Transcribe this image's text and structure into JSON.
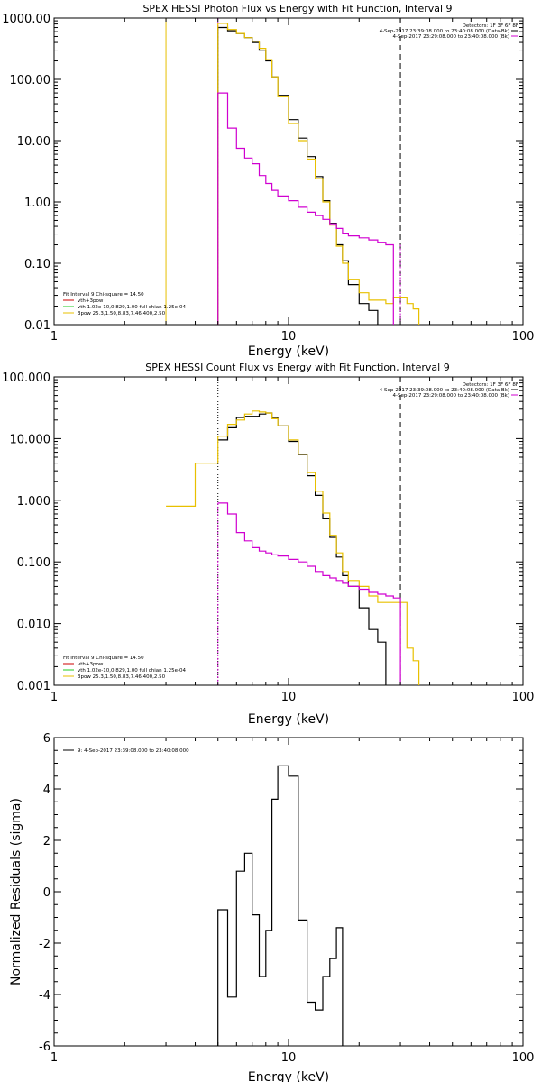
{
  "colors": {
    "black": "#000000",
    "yellow": "#e8c000",
    "magenta": "#d000d0",
    "red": "#cc0000",
    "green": "#22cc22"
  },
  "chart_data": [
    {
      "type": "line",
      "title": "SPEX HESSI Photon Flux vs Energy with Fit Function, Interval 9",
      "xlabel": "Energy (keV)",
      "ylabel": "",
      "xscale": "log",
      "yscale": "log",
      "xlim": [
        1,
        100
      ],
      "ylim": [
        0.01,
        1000
      ],
      "x_ticks": [
        "1",
        "10",
        "100"
      ],
      "y_ticks": [
        "0.01",
        "0.10",
        "1.00",
        "10.00",
        "100.00",
        "1000.00"
      ],
      "legend_top_right": [
        "Detectors: 1F 3F 6F 8F",
        "4-Sep-2017 23:39:08.000 to 23:40:08.000 (Data-Bk)",
        "4-Sep-2017 23:29:08.000 to 23:40:08.000 (Bk)"
      ],
      "legend_bottom_left": [
        "Fit Interval 9   Chi-square = 14.50",
        "vth+3pow",
        "vth 1.02e-10,0.829,1.00  full chian 1.25e-04",
        "3pow 25.3,1.50,8.83,7.46,400,2.50"
      ],
      "vertical_lines": [
        3.0,
        5.0,
        30.0
      ],
      "edges": [
        5.0,
        5.5,
        6.0,
        6.5,
        7.0,
        7.5,
        8.0,
        8.5,
        9.0,
        10.0,
        11.0,
        12.0,
        13.0,
        14.0,
        15.0,
        16.0,
        17.0,
        18.0,
        20.0,
        22.0,
        24.0,
        26.0,
        28.0,
        30.0,
        32.0,
        34.0,
        36.0
      ],
      "series": [
        {
          "color": "#000000",
          "values": [
            700,
            620,
            560,
            480,
            400,
            300,
            200,
            110,
            55,
            22,
            11,
            5.5,
            2.6,
            1.05,
            0.45,
            0.2,
            0.11,
            0.045,
            0.022,
            0.017
          ]
        },
        {
          "color": "#e8c000",
          "values": [
            820,
            650,
            560,
            480,
            420,
            320,
            210,
            110,
            52,
            19,
            10,
            5,
            2.4,
            1.0,
            0.42,
            0.19,
            0.1,
            0.055,
            0.033,
            0.025,
            0.025,
            0.022,
            0.028,
            0.028,
            0.022,
            0.018,
            0.012
          ]
        },
        {
          "color": "#d000d0",
          "values": [
            60,
            16,
            7.5,
            5.2,
            4.2,
            2.7,
            2.0,
            1.55,
            1.25,
            1.05,
            0.82,
            0.68,
            0.6,
            0.52,
            0.44,
            0.37,
            0.31,
            0.28,
            0.26,
            0.24,
            0.22,
            0.2
          ]
        }
      ]
    },
    {
      "type": "line",
      "title": "SPEX HESSI Count Flux vs Energy with Fit Function, Interval 9",
      "xlabel": "Energy (keV)",
      "ylabel": "",
      "xscale": "log",
      "yscale": "log",
      "xlim": [
        1,
        100
      ],
      "ylim": [
        0.001,
        100
      ],
      "x_ticks": [
        "1",
        "10",
        "100"
      ],
      "y_ticks": [
        "0.001",
        "0.010",
        "0.100",
        "1.000",
        "10.000",
        "100.000"
      ],
      "legend_top_right": [
        "Detectors: 1F 3F 6F 8F",
        "4-Sep-2017 23:39:08.000 to 23:40:08.000 (Data-Bk)",
        "4-Sep-2017 23:29:08.000 to 23:40:08.000 (Bk)"
      ],
      "legend_bottom_left": [
        "Fit Interval 9   Chi-square = 14.50",
        "vth+3pow",
        "vth 1.02e-10,0.829,1.00  full chian 1.25e-04",
        "3pow 25.3,1.50,8.83,7.46,400,2.50"
      ],
      "vertical_lines": [
        5.0,
        30.0
      ],
      "edges": [
        3.0,
        4.0,
        5.0,
        5.5,
        6.0,
        6.5,
        7.0,
        7.5,
        8.0,
        8.5,
        9.0,
        10.0,
        11.0,
        12.0,
        13.0,
        14.0,
        15.0,
        16.0,
        17.0,
        18.0,
        20.0,
        22.0,
        24.0,
        26.0,
        28.0,
        30.0,
        32.0,
        34.0,
        36.0
      ],
      "series": [
        {
          "color": "#000000",
          "values": [
            null,
            null,
            9.5,
            15,
            22,
            23,
            23,
            25,
            26,
            22,
            16,
            9,
            5.5,
            2.5,
            1.2,
            0.5,
            0.25,
            0.12,
            0.06,
            0.04,
            0.018,
            0.008,
            0.005
          ]
        },
        {
          "color": "#e8c000",
          "values": [
            0.8,
            4,
            11,
            17,
            20,
            25,
            28,
            27,
            26,
            21,
            16,
            9.5,
            5.6,
            2.8,
            1.4,
            0.62,
            0.27,
            0.14,
            0.07,
            0.05,
            0.04,
            0.028,
            0.022,
            0.022,
            0.022,
            0.022,
            0.004,
            0.0025,
            0.001
          ]
        },
        {
          "color": "#d000d0",
          "values": [
            null,
            null,
            0.9,
            0.6,
            0.3,
            0.22,
            0.17,
            0.15,
            0.14,
            0.13,
            0.125,
            0.11,
            0.1,
            0.085,
            0.07,
            0.06,
            0.055,
            0.05,
            0.045,
            0.04,
            0.036,
            0.032,
            0.03,
            0.028,
            0.026
          ]
        }
      ]
    },
    {
      "type": "line",
      "title": "",
      "xlabel": "Energy (keV)",
      "ylabel": "Normalized Residuals (sigma)",
      "xscale": "log",
      "yscale": "linear",
      "xlim": [
        1,
        100
      ],
      "ylim": [
        -6,
        6
      ],
      "x_ticks": [
        "1",
        "10",
        "100"
      ],
      "y_ticks": [
        "-6",
        "-4",
        "-2",
        "0",
        "2",
        "4",
        "6"
      ],
      "legend": [
        "9:  4-Sep-2017 23:39:08.000 to 23:40:08.000"
      ],
      "edges": [
        5.0,
        5.5,
        6.0,
        6.5,
        7.0,
        7.5,
        8.0,
        8.5,
        9.0,
        10.0,
        11.0,
        12.0,
        13.0,
        14.0,
        15.0,
        16.0,
        17.0,
        18.0,
        20.0,
        22.0,
        24.0,
        26.0,
        28.0,
        30.0
      ],
      "series": [
        {
          "color": "#000000",
          "values": [
            -0.7,
            -4.1,
            0.8,
            1.5,
            -0.9,
            -3.3,
            -1.5,
            3.6,
            4.9,
            4.5,
            -1.1,
            -4.3,
            -4.6,
            -3.3,
            -2.6,
            -1.4
          ]
        }
      ]
    }
  ]
}
